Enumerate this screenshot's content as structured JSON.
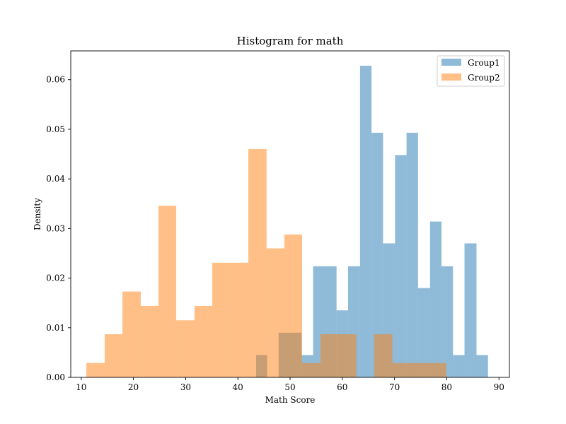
{
  "chart_data": {
    "type": "histogram",
    "title": "Histogram for math",
    "xlabel": "Math Score",
    "ylabel": "Density",
    "xlim": [
      8,
      92
    ],
    "ylim": [
      0,
      0.0658
    ],
    "xticks": [
      10,
      20,
      30,
      40,
      50,
      60,
      70,
      80,
      90
    ],
    "xtick_labels": [
      "10",
      "20",
      "30",
      "40",
      "50",
      "60",
      "70",
      "80",
      "90"
    ],
    "yticks": [
      0,
      0.01,
      0.02,
      0.03,
      0.04,
      0.05,
      0.06
    ],
    "ytick_labels": [
      "0.00",
      "0.01",
      "0.02",
      "0.03",
      "0.04",
      "0.05",
      "0.06"
    ],
    "grid": false,
    "legend_position": "upper-right",
    "series": [
      {
        "name": "Group1",
        "color": "#1f77b4",
        "alpha": 0.5,
        "bins": [
          {
            "x0": 43.5,
            "x1": 45.6,
            "y": 0.0045
          },
          {
            "x0": 45.6,
            "x1": 47.8,
            "y": 0.0
          },
          {
            "x0": 47.8,
            "x1": 50.0,
            "y": 0.009
          },
          {
            "x0": 50.0,
            "x1": 52.2,
            "y": 0.009
          },
          {
            "x0": 52.2,
            "x1": 54.4,
            "y": 0.0045
          },
          {
            "x0": 54.4,
            "x1": 56.7,
            "y": 0.0224
          },
          {
            "x0": 56.7,
            "x1": 58.9,
            "y": 0.0224
          },
          {
            "x0": 58.9,
            "x1": 61.1,
            "y": 0.0135
          },
          {
            "x0": 61.1,
            "x1": 63.4,
            "y": 0.0224
          },
          {
            "x0": 63.4,
            "x1": 65.6,
            "y": 0.0628
          },
          {
            "x0": 65.6,
            "x1": 67.8,
            "y": 0.0493
          },
          {
            "x0": 67.8,
            "x1": 70.1,
            "y": 0.027
          },
          {
            "x0": 70.1,
            "x1": 72.3,
            "y": 0.0448
          },
          {
            "x0": 72.3,
            "x1": 74.5,
            "y": 0.0493
          },
          {
            "x0": 74.5,
            "x1": 76.8,
            "y": 0.018
          },
          {
            "x0": 76.8,
            "x1": 79.0,
            "y": 0.0314
          },
          {
            "x0": 79.0,
            "x1": 81.2,
            "y": 0.0224
          },
          {
            "x0": 81.2,
            "x1": 83.4,
            "y": 0.0045
          },
          {
            "x0": 83.4,
            "x1": 85.7,
            "y": 0.027
          },
          {
            "x0": 85.7,
            "x1": 87.9,
            "y": 0.0045
          }
        ]
      },
      {
        "name": "Group2",
        "color": "#ff7f0e",
        "alpha": 0.5,
        "bins": [
          {
            "x0": 11.0,
            "x1": 14.5,
            "y": 0.0029
          },
          {
            "x0": 14.5,
            "x1": 17.9,
            "y": 0.0087
          },
          {
            "x0": 17.9,
            "x1": 21.4,
            "y": 0.0173
          },
          {
            "x0": 21.4,
            "x1": 24.8,
            "y": 0.0144
          },
          {
            "x0": 24.8,
            "x1": 28.2,
            "y": 0.0346
          },
          {
            "x0": 28.2,
            "x1": 31.7,
            "y": 0.0115
          },
          {
            "x0": 31.7,
            "x1": 35.1,
            "y": 0.0144
          },
          {
            "x0": 35.1,
            "x1": 38.6,
            "y": 0.0231
          },
          {
            "x0": 38.6,
            "x1": 42.0,
            "y": 0.0231
          },
          {
            "x0": 42.0,
            "x1": 45.5,
            "y": 0.046
          },
          {
            "x0": 45.5,
            "x1": 48.9,
            "y": 0.026
          },
          {
            "x0": 48.9,
            "x1": 52.3,
            "y": 0.0288
          },
          {
            "x0": 52.3,
            "x1": 55.8,
            "y": 0.0029
          },
          {
            "x0": 55.8,
            "x1": 59.2,
            "y": 0.0087
          },
          {
            "x0": 59.2,
            "x1": 62.7,
            "y": 0.0087
          },
          {
            "x0": 62.7,
            "x1": 66.1,
            "y": 0.0
          },
          {
            "x0": 66.1,
            "x1": 69.6,
            "y": 0.0087
          },
          {
            "x0": 69.6,
            "x1": 73.0,
            "y": 0.0029
          },
          {
            "x0": 73.0,
            "x1": 76.4,
            "y": 0.0029
          },
          {
            "x0": 76.4,
            "x1": 79.9,
            "y": 0.0029
          }
        ]
      }
    ]
  }
}
